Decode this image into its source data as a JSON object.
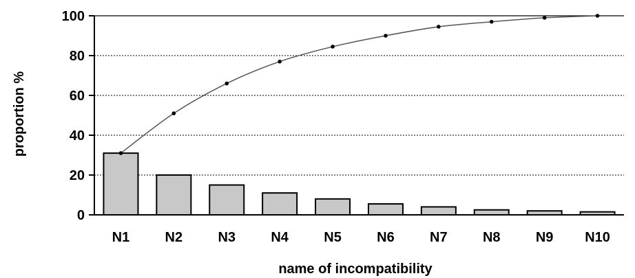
{
  "chart_data": {
    "type": "bar",
    "title": "",
    "xlabel": "name of incompatibility",
    "ylabel": "proportion %",
    "ylim": [
      0,
      100
    ],
    "yticks": [
      0,
      20,
      40,
      60,
      80,
      100
    ],
    "grid": true,
    "legend": "none",
    "categories": [
      "N1",
      "N2",
      "N3",
      "N4",
      "N5",
      "N6",
      "N7",
      "N8",
      "N9",
      "N10"
    ],
    "series": [
      {
        "type": "bar",
        "values": [
          31,
          20,
          15,
          11,
          8,
          5.5,
          4,
          2.5,
          2,
          1.5
        ],
        "color": "#c8c8c8"
      },
      {
        "type": "line",
        "values": [
          31,
          51,
          66,
          77,
          84.5,
          90,
          94.5,
          97,
          99,
          100
        ],
        "color": "#555555"
      }
    ]
  }
}
